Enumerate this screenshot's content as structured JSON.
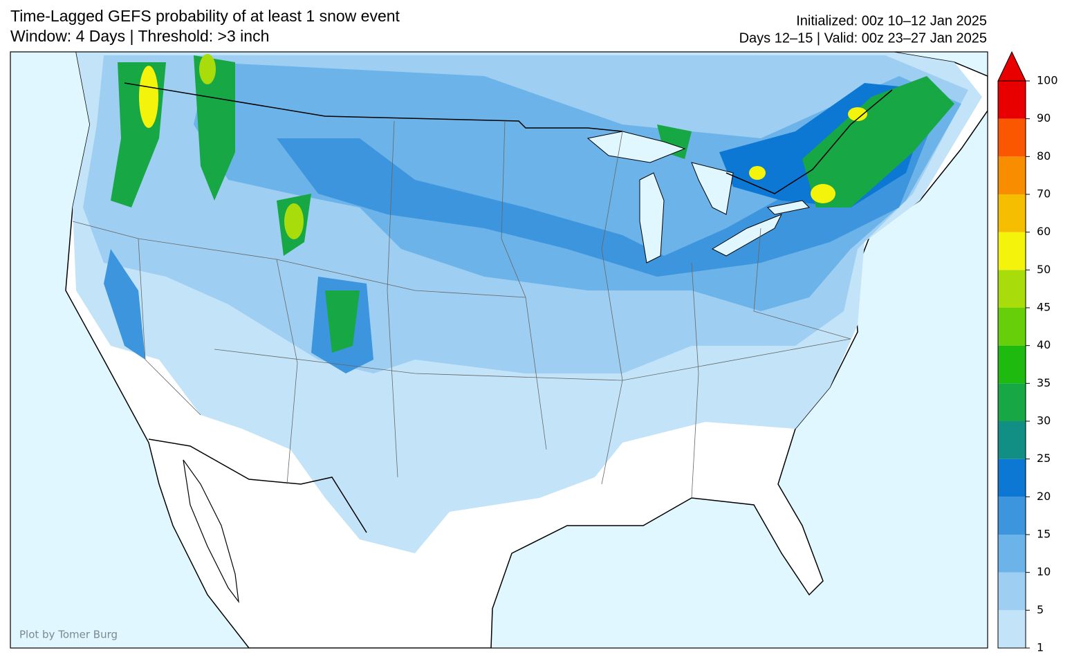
{
  "title_lines": [
    "Time-Lagged GEFS probability of at least 1 snow event",
    "Window: 4 Days | Threshold: >3 inch"
  ],
  "info_lines": [
    "Initialized: 00z 10–12 Jan 2025",
    "Days 12–15 | Valid: 00z 23–27 Jan 2025"
  ],
  "credit": "Plot by Tomer Burg",
  "colorbar": {
    "levels": [
      1,
      5,
      10,
      15,
      20,
      25,
      30,
      35,
      40,
      45,
      50,
      60,
      70,
      80,
      90,
      100
    ],
    "colors": [
      "#c3e4f8",
      "#9ecef2",
      "#6cb3e9",
      "#3c95dd",
      "#0d78d4",
      "#128f85",
      "#17a745",
      "#1fba10",
      "#66cf0a",
      "#a8dd0b",
      "#f3f30b",
      "#f5be00",
      "#f98d00",
      "#fb5700",
      "#e80000"
    ]
  }
}
